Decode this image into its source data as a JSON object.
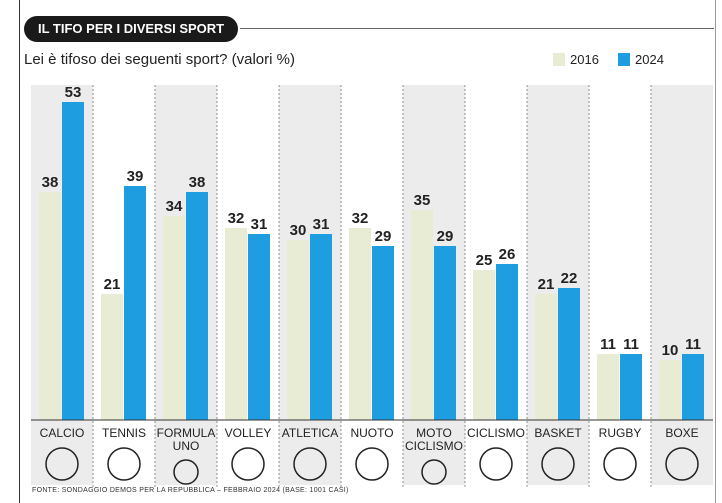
{
  "chart_data": {
    "type": "bar",
    "title": "IL TIFO PER I DIVERSI SPORT",
    "subtitle": "Lei è tifoso dei seguenti sport? (valori %)",
    "categories": [
      "CALCIO",
      "TENNIS",
      "FORMULA UNO",
      "VOLLEY",
      "ATLETICA",
      "NUOTO",
      "MOTO CICLISMO",
      "CICLISMO",
      "BASKET",
      "RUGBY",
      "BOXE"
    ],
    "icons": [
      "soccer-ball-icon",
      "tennis-ball-icon",
      "steering-wheel-icon",
      "volleyball-icon",
      "running-track-icon",
      "swim-cap-goggles-icon",
      "motorcycle-gloves-icon",
      "bike-helmet-icon",
      "basketball-icon",
      "rugby-ball-icon",
      "boxing-glove-icon"
    ],
    "series": [
      {
        "name": "2016",
        "color": "#e9ecd4",
        "values": [
          38,
          21,
          34,
          32,
          30,
          32,
          35,
          25,
          21,
          11,
          10
        ]
      },
      {
        "name": "2024",
        "color": "#1e9de0",
        "values": [
          53,
          39,
          38,
          31,
          31,
          29,
          29,
          26,
          22,
          11,
          11
        ]
      }
    ],
    "ylim": [
      0,
      55
    ],
    "legend": "top-right",
    "source": "FONTE: SONDAGGIO DEMOS PER LA REPUBBLICA – FEBBRAIO 2024 (BASE: 1001 CASI)"
  }
}
